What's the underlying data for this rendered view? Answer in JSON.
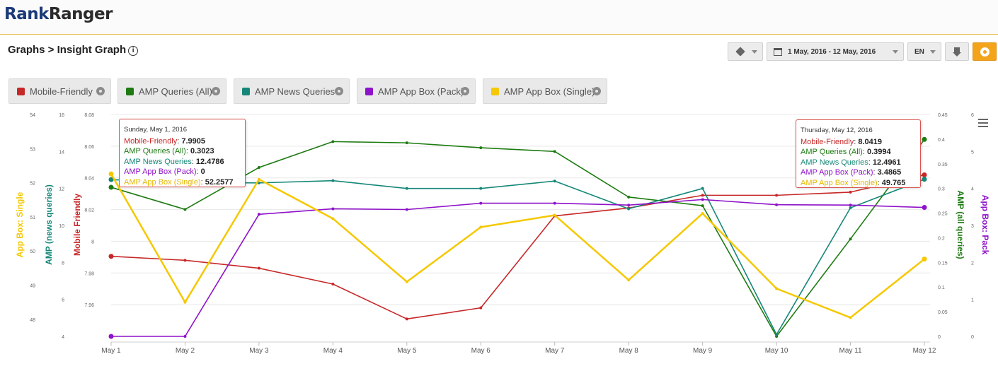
{
  "brand": {
    "part1": "Rank",
    "part2": "Ranger"
  },
  "breadcrumb": "Graphs > Insight Graph",
  "info_icon": "i",
  "toolbar": {
    "date_range": "1 May, 2016 - 12 May, 2016",
    "language": "EN",
    "icons": [
      "cube-icon",
      "calendar-icon",
      "download-icon",
      "gear-icon"
    ]
  },
  "legend": [
    {
      "label": "Mobile-Friendly",
      "color": "#c62828"
    },
    {
      "label": "AMP Queries (All)",
      "color": "#1e7b12"
    },
    {
      "label": "AMP News Queries",
      "color": "#158778"
    },
    {
      "label": "AMP App Box (Pack)",
      "color": "#8e12c9"
    },
    {
      "label": "AMP App Box (Single)",
      "color": "#f5c800"
    }
  ],
  "tooltips": [
    {
      "date": "Sunday, May 1, 2016",
      "rows": [
        {
          "label": "Mobile-Friendly",
          "value": "7.9905",
          "color": "#c62828"
        },
        {
          "label": "AMP Queries (All)",
          "value": "0.3023",
          "color": "#1e7b12"
        },
        {
          "label": "AMP News Queries",
          "value": "12.4786",
          "color": "#158778"
        },
        {
          "label": "AMP App Box (Pack)",
          "value": "0",
          "color": "#8e12c9"
        },
        {
          "label": "AMP App Box (Single)",
          "value": "52.2577",
          "color": "#e6b800"
        }
      ]
    },
    {
      "date": "Thursday, May 12, 2016",
      "rows": [
        {
          "label": "Mobile-Friendly",
          "value": "8.0419",
          "color": "#c62828"
        },
        {
          "label": "AMP Queries (All)",
          "value": "0.3994",
          "color": "#1e7b12"
        },
        {
          "label": "AMP News Queries",
          "value": "12.4961",
          "color": "#158778"
        },
        {
          "label": "AMP App Box (Pack)",
          "value": "3.4865",
          "color": "#8e12c9"
        },
        {
          "label": "AMP App Box (Single)",
          "value": "49.765",
          "color": "#e6b800"
        }
      ]
    }
  ],
  "chart_data": {
    "type": "line",
    "categories": [
      "May 1",
      "May 2",
      "May 3",
      "May 4",
      "May 5",
      "May 6",
      "May 7",
      "May 8",
      "May 9",
      "May 10",
      "May 11",
      "May 12"
    ],
    "series": [
      {
        "name": "Mobile-Friendly",
        "axis": "mobile",
        "color": "#c62828",
        "values": [
          7.9905,
          7.988,
          7.983,
          7.973,
          7.951,
          7.958,
          8.016,
          8.021,
          8.029,
          8.029,
          8.031,
          8.0419
        ]
      },
      {
        "name": "AMP Queries (All)",
        "axis": "amp_all",
        "color": "#1e7b12",
        "values": [
          0.3023,
          0.2575,
          0.3425,
          0.395,
          0.3925,
          0.3825,
          0.375,
          0.2825,
          0.265,
          0.0,
          0.1975,
          0.3994
        ]
      },
      {
        "name": "AMP News Queries",
        "axis": "amp_news",
        "color": "#158778",
        "values": [
          12.4786,
          12.32,
          12.3,
          12.42,
          12.0,
          12.0,
          12.4,
          10.9,
          12.0,
          4.1,
          10.95,
          12.4961
        ]
      },
      {
        "name": "AMP App Box (Pack)",
        "axis": "app_pack",
        "color": "#8e12c9",
        "values": [
          0.0,
          0.0,
          3.3,
          3.45,
          3.43,
          3.6,
          3.6,
          3.55,
          3.7,
          3.56,
          3.55,
          3.4865
        ]
      },
      {
        "name": "AMP App Box (Single)",
        "axis": "app_single",
        "color": "#f5c800",
        "values": [
          52.2577,
          48.5,
          52.1,
          50.95,
          49.1,
          50.7,
          51.05,
          49.15,
          51.1,
          48.9,
          48.05,
          49.765
        ]
      }
    ],
    "axes": [
      {
        "key": "app_single",
        "side": "left",
        "label": "App Box: Single",
        "color": "#f5c800",
        "min": 47.5,
        "max": 54,
        "ticks": [
          "54",
          "53",
          "52",
          "51",
          "50",
          "49",
          "48"
        ],
        "tick_values": [
          54,
          53,
          52,
          51,
          50,
          49,
          48
        ]
      },
      {
        "key": "amp_news",
        "side": "left",
        "label": "AMP (news queries)",
        "color": "#158778",
        "min": 4,
        "max": 16,
        "ticks": [
          "16",
          "14",
          "12",
          "10",
          "8",
          "6",
          "4"
        ],
        "tick_values": [
          16,
          14,
          12,
          10,
          8,
          6,
          4
        ]
      },
      {
        "key": "mobile",
        "side": "left",
        "label": "Mobile Friendly",
        "color": "#c62828",
        "min": 7.94,
        "max": 8.08,
        "ticks": [
          "8.08",
          "8.06",
          "8.04",
          "8.02",
          "8",
          "7.98",
          "7.96"
        ],
        "tick_values": [
          8.08,
          8.06,
          8.04,
          8.02,
          8,
          7.98,
          7.96
        ]
      },
      {
        "key": "amp_all",
        "side": "right",
        "label": "AMP (all queries)",
        "color": "#1e7b12",
        "min": 0,
        "max": 0.45,
        "ticks": [
          "0.45",
          "0.4",
          "0.35",
          "0.3",
          "0.25",
          "0.2",
          "0.15",
          "0.1",
          "0.05",
          "0"
        ],
        "tick_values": [
          0.45,
          0.4,
          0.35,
          0.3,
          0.25,
          0.2,
          0.15,
          0.1,
          0.05,
          0
        ]
      },
      {
        "key": "app_pack",
        "side": "right",
        "label": "App Box: Pack",
        "color": "#8e12c9",
        "min": 0,
        "max": 6,
        "ticks": [
          "6",
          "5",
          "4",
          "3",
          "2",
          "1",
          "0"
        ],
        "tick_values": [
          6,
          5,
          4,
          3,
          2,
          1,
          0
        ]
      }
    ],
    "grid": true
  }
}
